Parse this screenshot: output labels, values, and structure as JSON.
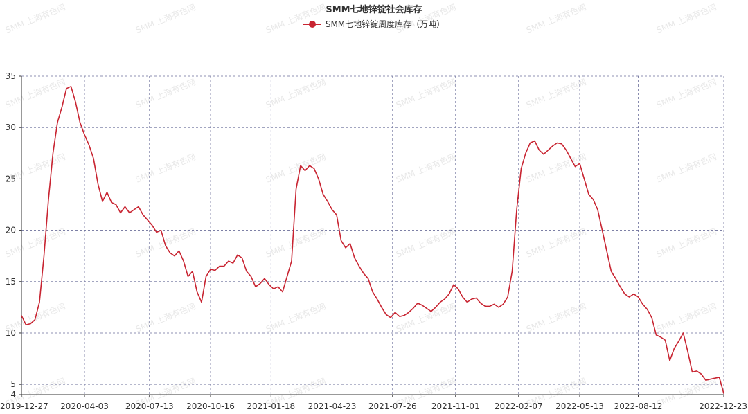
{
  "chart_data": {
    "type": "line",
    "title": "SMM七地锌锭社会库存",
    "series": [
      {
        "name": "SMM七地锌锭周度库存（万吨）",
        "color": "#c82431",
        "points": [
          [
            "2019-12-27",
            11.7
          ],
          [
            "2020-01-03",
            10.8
          ],
          [
            "2020-01-10",
            10.9
          ],
          [
            "2020-01-17",
            11.3
          ],
          [
            "2020-01-24",
            13.0
          ],
          [
            "2020-01-31",
            17.5
          ],
          [
            "2020-02-07",
            23.0
          ],
          [
            "2020-02-14",
            27.5
          ],
          [
            "2020-02-21",
            30.5
          ],
          [
            "2020-02-28",
            32.0
          ],
          [
            "2020-03-06",
            33.8
          ],
          [
            "2020-03-13",
            34.0
          ],
          [
            "2020-03-20",
            32.5
          ],
          [
            "2020-03-27",
            30.5
          ],
          [
            "2020-04-03",
            29.3
          ],
          [
            "2020-04-10",
            28.3
          ],
          [
            "2020-04-17",
            27.0
          ],
          [
            "2020-04-24",
            24.5
          ],
          [
            "2020-05-01",
            22.8
          ],
          [
            "2020-05-08",
            23.7
          ],
          [
            "2020-05-15",
            22.7
          ],
          [
            "2020-05-22",
            22.5
          ],
          [
            "2020-05-29",
            21.7
          ],
          [
            "2020-06-05",
            22.3
          ],
          [
            "2020-06-12",
            21.7
          ],
          [
            "2020-06-19",
            22.0
          ],
          [
            "2020-06-26",
            22.3
          ],
          [
            "2020-07-03",
            21.5
          ],
          [
            "2020-07-10",
            21.0
          ],
          [
            "2020-07-17",
            20.5
          ],
          [
            "2020-07-24",
            19.8
          ],
          [
            "2020-07-31",
            20.0
          ],
          [
            "2020-08-07",
            18.5
          ],
          [
            "2020-08-14",
            17.8
          ],
          [
            "2020-08-21",
            17.5
          ],
          [
            "2020-08-28",
            18.0
          ],
          [
            "2020-09-04",
            17.0
          ],
          [
            "2020-09-11",
            15.5
          ],
          [
            "2020-09-18",
            16.0
          ],
          [
            "2020-09-25",
            14.0
          ],
          [
            "2020-10-02",
            13.0
          ],
          [
            "2020-10-09",
            15.5
          ],
          [
            "2020-10-16",
            16.2
          ],
          [
            "2020-10-23",
            16.1
          ],
          [
            "2020-10-30",
            16.5
          ],
          [
            "2020-11-06",
            16.5
          ],
          [
            "2020-11-13",
            17.0
          ],
          [
            "2020-11-20",
            16.8
          ],
          [
            "2020-11-27",
            17.6
          ],
          [
            "2020-12-04",
            17.3
          ],
          [
            "2020-12-11",
            16.0
          ],
          [
            "2020-12-18",
            15.5
          ],
          [
            "2020-12-25",
            14.5
          ],
          [
            "2021-01-01",
            14.8
          ],
          [
            "2021-01-08",
            15.3
          ],
          [
            "2021-01-15",
            14.7
          ],
          [
            "2021-01-22",
            14.3
          ],
          [
            "2021-01-29",
            14.5
          ],
          [
            "2021-02-05",
            14.0
          ],
          [
            "2021-02-12",
            15.5
          ],
          [
            "2021-02-19",
            17.0
          ],
          [
            "2021-02-26",
            24.0
          ],
          [
            "2021-03-05",
            26.3
          ],
          [
            "2021-03-12",
            25.8
          ],
          [
            "2021-03-19",
            26.3
          ],
          [
            "2021-03-26",
            26.0
          ],
          [
            "2021-04-02",
            25.0
          ],
          [
            "2021-04-09",
            23.5
          ],
          [
            "2021-04-16",
            22.8
          ],
          [
            "2021-04-23",
            22.0
          ],
          [
            "2021-04-30",
            21.5
          ],
          [
            "2021-05-07",
            19.0
          ],
          [
            "2021-05-14",
            18.3
          ],
          [
            "2021-05-21",
            18.7
          ],
          [
            "2021-05-28",
            17.3
          ],
          [
            "2021-06-04",
            16.5
          ],
          [
            "2021-06-11",
            15.8
          ],
          [
            "2021-06-18",
            15.3
          ],
          [
            "2021-06-25",
            14.0
          ],
          [
            "2021-07-02",
            13.3
          ],
          [
            "2021-07-09",
            12.5
          ],
          [
            "2021-07-16",
            11.8
          ],
          [
            "2021-07-23",
            11.5
          ],
          [
            "2021-07-30",
            12.0
          ],
          [
            "2021-08-06",
            11.6
          ],
          [
            "2021-08-13",
            11.7
          ],
          [
            "2021-08-20",
            12.0
          ],
          [
            "2021-08-27",
            12.4
          ],
          [
            "2021-09-03",
            12.9
          ],
          [
            "2021-09-10",
            12.7
          ],
          [
            "2021-09-17",
            12.4
          ],
          [
            "2021-09-24",
            12.1
          ],
          [
            "2021-10-01",
            12.5
          ],
          [
            "2021-10-08",
            13.0
          ],
          [
            "2021-10-15",
            13.3
          ],
          [
            "2021-10-22",
            13.8
          ],
          [
            "2021-10-29",
            14.7
          ],
          [
            "2021-11-05",
            14.3
          ],
          [
            "2021-11-12",
            13.5
          ],
          [
            "2021-11-19",
            13.0
          ],
          [
            "2021-11-26",
            13.3
          ],
          [
            "2021-12-03",
            13.4
          ],
          [
            "2021-12-10",
            12.9
          ],
          [
            "2021-12-17",
            12.6
          ],
          [
            "2021-12-24",
            12.6
          ],
          [
            "2021-12-31",
            12.8
          ],
          [
            "2022-01-07",
            12.5
          ],
          [
            "2022-01-14",
            12.8
          ],
          [
            "2022-01-21",
            13.5
          ],
          [
            "2022-01-28",
            16.0
          ],
          [
            "2022-02-04",
            22.0
          ],
          [
            "2022-02-11",
            26.0
          ],
          [
            "2022-02-18",
            27.5
          ],
          [
            "2022-02-25",
            28.5
          ],
          [
            "2022-03-04",
            28.7
          ],
          [
            "2022-03-11",
            27.8
          ],
          [
            "2022-03-18",
            27.4
          ],
          [
            "2022-03-25",
            27.8
          ],
          [
            "2022-04-01",
            28.2
          ],
          [
            "2022-04-08",
            28.5
          ],
          [
            "2022-04-15",
            28.4
          ],
          [
            "2022-04-22",
            27.8
          ],
          [
            "2022-04-29",
            27.0
          ],
          [
            "2022-05-06",
            26.2
          ],
          [
            "2022-05-13",
            26.5
          ],
          [
            "2022-05-20",
            25.0
          ],
          [
            "2022-05-27",
            23.5
          ],
          [
            "2022-06-03",
            23.0
          ],
          [
            "2022-06-10",
            22.0
          ],
          [
            "2022-06-17",
            20.0
          ],
          [
            "2022-06-24",
            18.0
          ],
          [
            "2022-07-01",
            16.0
          ],
          [
            "2022-07-08",
            15.3
          ],
          [
            "2022-07-15",
            14.5
          ],
          [
            "2022-07-22",
            13.8
          ],
          [
            "2022-07-29",
            13.5
          ],
          [
            "2022-08-05",
            13.8
          ],
          [
            "2022-08-12",
            13.5
          ],
          [
            "2022-08-19",
            12.8
          ],
          [
            "2022-08-26",
            12.3
          ],
          [
            "2022-09-02",
            11.5
          ],
          [
            "2022-09-09",
            9.8
          ],
          [
            "2022-09-16",
            9.6
          ],
          [
            "2022-09-23",
            9.3
          ],
          [
            "2022-09-30",
            7.3
          ],
          [
            "2022-10-07",
            8.5
          ],
          [
            "2022-10-14",
            9.2
          ],
          [
            "2022-10-21",
            10.0
          ],
          [
            "2022-10-28",
            8.2
          ],
          [
            "2022-11-04",
            6.2
          ],
          [
            "2022-11-11",
            6.3
          ],
          [
            "2022-11-18",
            6.0
          ],
          [
            "2022-11-25",
            5.4
          ],
          [
            "2022-12-02",
            5.5
          ],
          [
            "2022-12-09",
            5.6
          ],
          [
            "2022-12-16",
            5.7
          ],
          [
            "2022-12-23",
            4.1
          ]
        ]
      }
    ],
    "x_ticks": [
      "2019-12-27",
      "2020-04-03",
      "2020-07-13",
      "2020-10-16",
      "2021-01-18",
      "2021-04-23",
      "2021-07-26",
      "2021-11-01",
      "2022-02-07",
      "2022-05-13",
      "2022-08-12",
      "2022-12-23"
    ],
    "y_ticks": [
      4,
      5,
      10,
      15,
      20,
      25,
      30,
      35
    ],
    "ylim": [
      4,
      35
    ],
    "xlim": [
      "2019-12-27",
      "2022-12-23"
    ],
    "grid": true,
    "legend_position": "top-center",
    "watermark": "SMM 上海有色网"
  }
}
